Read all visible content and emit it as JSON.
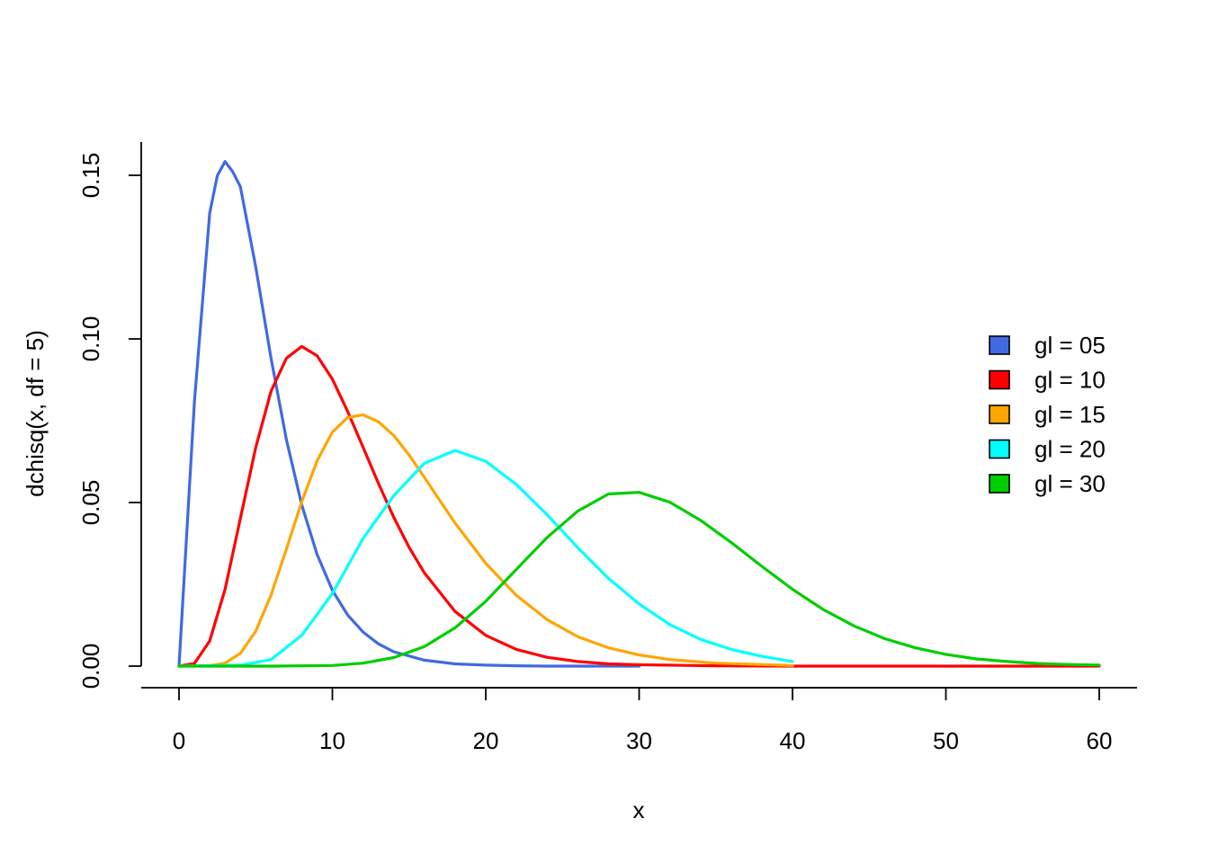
{
  "chart_data": {
    "type": "line",
    "xlabel": "x",
    "ylabel": "dchisq(x, df = 5)",
    "xlim": [
      0,
      60
    ],
    "ylim": [
      0,
      0.16
    ],
    "x_ticks": [
      "0",
      "10",
      "20",
      "30",
      "40",
      "50",
      "60"
    ],
    "y_ticks": [
      "0.00",
      "0.05",
      "0.10",
      "0.15"
    ],
    "x_tick_values": [
      0,
      10,
      20,
      30,
      40,
      50,
      60
    ],
    "y_tick_values": [
      0,
      0.05,
      0.1,
      0.15
    ],
    "legend_position": "right",
    "series": [
      {
        "name": "gl = 05",
        "color": "#4169E1",
        "x": [
          0,
          1,
          2,
          2.5,
          3,
          3.5,
          4,
          5,
          6,
          7,
          8,
          9,
          10,
          11,
          12,
          13,
          14,
          16,
          18,
          20,
          22,
          24,
          26,
          30
        ],
        "y": [
          0,
          0.0807,
          0.1384,
          0.1499,
          0.1542,
          0.1511,
          0.1465,
          0.122,
          0.0941,
          0.0692,
          0.0493,
          0.0342,
          0.0232,
          0.0156,
          0.0104,
          0.0068,
          0.0044,
          0.0018,
          0.0007,
          0.0003,
          0.0001,
          0.0,
          0.0,
          0.0
        ]
      },
      {
        "name": "gl = 10",
        "color": "#FF0000",
        "x": [
          0,
          1,
          2,
          3,
          4,
          5,
          6,
          7,
          8,
          9,
          10,
          11,
          12,
          13,
          14,
          15,
          16,
          18,
          20,
          22,
          24,
          26,
          28,
          30,
          35,
          40,
          50,
          60
        ],
        "y": [
          0,
          0.0008,
          0.0077,
          0.0235,
          0.0451,
          0.0668,
          0.084,
          0.0941,
          0.0977,
          0.0949,
          0.0877,
          0.0778,
          0.0669,
          0.0559,
          0.0455,
          0.0363,
          0.0285,
          0.0167,
          0.0094,
          0.0051,
          0.0027,
          0.0014,
          0.0007,
          0.0004,
          0.0001,
          0.0,
          0.0,
          0.0
        ]
      },
      {
        "name": "gl = 15",
        "color": "#FFA500",
        "x": [
          0,
          2,
          3,
          4,
          5,
          6,
          7,
          8,
          9,
          10,
          11,
          12,
          13,
          14,
          15,
          16,
          17,
          18,
          20,
          22,
          24,
          26,
          28,
          30,
          32,
          35,
          40
        ],
        "y": [
          0,
          0.0001,
          0.0009,
          0.0039,
          0.0107,
          0.0217,
          0.0358,
          0.0502,
          0.0627,
          0.0715,
          0.076,
          0.0768,
          0.0747,
          0.0705,
          0.0645,
          0.0577,
          0.0507,
          0.0437,
          0.0314,
          0.0216,
          0.0142,
          0.009,
          0.0056,
          0.0034,
          0.002,
          0.0009,
          0.0002
        ]
      },
      {
        "name": "gl = 20",
        "color": "#00FFFF",
        "x": [
          0,
          4,
          6,
          8,
          10,
          12,
          14,
          16,
          18,
          20,
          22,
          24,
          26,
          28,
          30,
          32,
          34,
          36,
          38,
          40
        ],
        "y": [
          0,
          0.0003,
          0.002,
          0.0094,
          0.0222,
          0.039,
          0.0521,
          0.062,
          0.0659,
          0.0626,
          0.0555,
          0.0463,
          0.0362,
          0.0268,
          0.019,
          0.0127,
          0.0082,
          0.0051,
          0.003,
          0.0014
        ]
      },
      {
        "name": "gl = 30",
        "color": "#00CD00",
        "x": [
          0,
          6,
          10,
          12,
          14,
          16,
          18,
          20,
          22,
          24,
          26,
          28,
          30,
          32,
          34,
          36,
          38,
          40,
          42,
          44,
          46,
          48,
          50,
          52,
          54,
          56,
          58,
          60
        ],
        "y": [
          0,
          0.0,
          0.0002,
          0.0009,
          0.0026,
          0.006,
          0.0117,
          0.0198,
          0.0296,
          0.0393,
          0.0474,
          0.0526,
          0.0531,
          0.0501,
          0.0446,
          0.0378,
          0.0305,
          0.0235,
          0.0173,
          0.0123,
          0.0084,
          0.0056,
          0.0036,
          0.0022,
          0.0014,
          0.0008,
          0.0005,
          0.0003
        ]
      }
    ]
  }
}
